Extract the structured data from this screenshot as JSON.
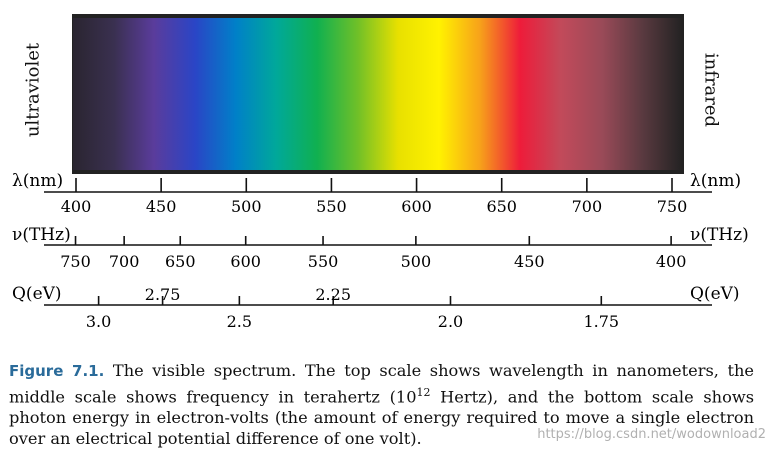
{
  "colors": {
    "spectrum_stops": [
      "#2a2530",
      "#3a3050",
      "#5a3c9c",
      "#2a45c6",
      "#0080c8",
      "#00a89a",
      "#10b050",
      "#70c028",
      "#e8e000",
      "#fff200",
      "#f7a21a",
      "#ee1c3a",
      "#c24a5a",
      "#9a4a58",
      "#5a3a40",
      "#222222"
    ],
    "caption_number": "#2a6b9a"
  },
  "spectrum": {
    "left_label": "ultraviolet",
    "right_label": "infrared"
  },
  "scales": {
    "wavelength": {
      "unit": "λ(nm)",
      "unit_right": "λ(nm)",
      "ticks": [
        {
          "value": 400,
          "label": "400"
        },
        {
          "value": 450,
          "label": "450"
        },
        {
          "value": 500,
          "label": "500"
        },
        {
          "value": 550,
          "label": "550"
        },
        {
          "value": 600,
          "label": "600"
        },
        {
          "value": 650,
          "label": "650"
        },
        {
          "value": 700,
          "label": "700"
        },
        {
          "value": 750,
          "label": "750"
        }
      ]
    },
    "frequency": {
      "unit": "ν(THz)",
      "unit_right": "ν(THz)",
      "ticks": [
        {
          "value": 750,
          "label": "750"
        },
        {
          "value": 700,
          "label": "700"
        },
        {
          "value": 650,
          "label": "650"
        },
        {
          "value": 600,
          "label": "600"
        },
        {
          "value": 550,
          "label": "550"
        },
        {
          "value": 500,
          "label": "500"
        },
        {
          "value": 450,
          "label": "450"
        },
        {
          "value": 400,
          "label": "400"
        }
      ]
    },
    "energy": {
      "unit": "Q(eV)",
      "unit_right": "Q(eV)",
      "ticks": [
        {
          "value": 3.0,
          "label": "3.0",
          "pos": "below"
        },
        {
          "value": 2.75,
          "label": "2.75",
          "pos": "above"
        },
        {
          "value": 2.5,
          "label": "2.5",
          "pos": "below"
        },
        {
          "value": 2.25,
          "label": "2.25",
          "pos": "above"
        },
        {
          "value": 2.0,
          "label": "2.0",
          "pos": "below"
        },
        {
          "value": 1.75,
          "label": "1.75",
          "pos": "below"
        }
      ]
    }
  },
  "caption": {
    "number": "Figure 7.1.",
    "text_before_sup": " The visible spectrum. The top scale shows wavelength in nanometers, the middle scale shows frequency in terahertz (10",
    "sup": "12",
    "text_after_sup": " Hertz), and the bottom scale shows photon energy in electron-volts (the amount of energy required to move a single electron over an electrical potential difference of one volt)."
  },
  "watermark": "https://blog.csdn.net/wodownload2"
}
